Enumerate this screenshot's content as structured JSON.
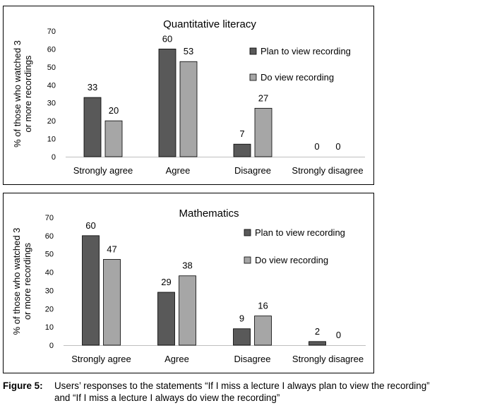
{
  "chart_data": [
    {
      "type": "bar",
      "title": "Quantitative literacy",
      "ylabel": "% of those who watched 3 or more recordings",
      "ylim": [
        0,
        70
      ],
      "yticks": [
        0,
        10,
        20,
        30,
        40,
        50,
        60,
        70
      ],
      "categories": [
        "Strongly agree",
        "Agree",
        "Disagree",
        "Strongly disagree"
      ],
      "series": [
        {
          "name": "Plan to view recording",
          "values": [
            33,
            60,
            7,
            0
          ],
          "color": "#595959"
        },
        {
          "name": "Do view recording",
          "values": [
            20,
            53,
            27,
            0
          ],
          "color": "#a6a6a6"
        }
      ],
      "legend": "right",
      "grid": false
    },
    {
      "type": "bar",
      "title": "Mathematics",
      "ylabel": "% of those who watched 3 or more recordings",
      "ylim": [
        0,
        70
      ],
      "yticks": [
        0,
        10,
        20,
        30,
        40,
        50,
        60,
        70
      ],
      "categories": [
        "Strongly agree",
        "Agree",
        "Disagree",
        "Strongly disagree"
      ],
      "series": [
        {
          "name": "Plan to view recording",
          "values": [
            60,
            29,
            9,
            2
          ],
          "color": "#595959"
        },
        {
          "name": "Do view recording",
          "values": [
            47,
            38,
            16,
            0
          ],
          "color": "#a6a6a6"
        }
      ],
      "legend": "right",
      "grid": false
    }
  ],
  "caption": {
    "label": "Figure 5:",
    "line1": "Users’ responses to the statements “If I miss a lecture I always plan to view the recording”",
    "line2": "and “If I miss a lecture I always do view the recording”"
  }
}
